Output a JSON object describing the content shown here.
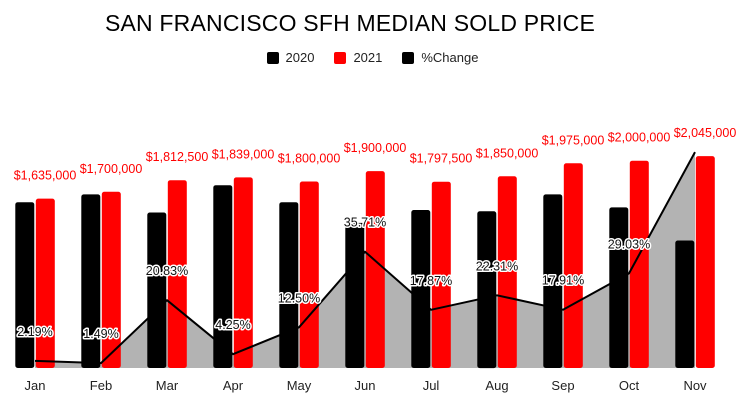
{
  "chart_data": {
    "type": "bar",
    "title": "SAN FRANCISCO SFH MEDIAN SOLD PRICE",
    "categories": [
      "Jan",
      "Feb",
      "Mar",
      "Apr",
      "May",
      "Jun",
      "Jul",
      "Aug",
      "Sep",
      "Oct",
      "Nov"
    ],
    "series": [
      {
        "name": "2020",
        "color": "#000000",
        "values": [
          1600000,
          1675000,
          1500000,
          1764000,
          1600000,
          1400000,
          1525000,
          1512500,
          1675000,
          1550000,
          1230000
        ]
      },
      {
        "name": "2021",
        "color": "#ff0000",
        "values": [
          1635000,
          1700000,
          1812500,
          1839000,
          1800000,
          1900000,
          1797500,
          1850000,
          1975000,
          2000000,
          2045000
        ],
        "data_labels": [
          "$1,635,000",
          "$1,700,000",
          "$1,812,500",
          "$1,839,000",
          "$1,800,000",
          "$1,900,000",
          "$1,797,500",
          "$1,850,000",
          "$1,975,000",
          "$2,000,000",
          "$2,045,000"
        ]
      }
    ],
    "change_series": {
      "name": "%Change",
      "type": "area-line",
      "line_color": "#000000",
      "fill_color": "#b3b3b3",
      "values": [
        2.19,
        1.49,
        20.83,
        4.25,
        12.5,
        35.71,
        17.87,
        22.31,
        17.91,
        29.03,
        66.3
      ],
      "data_labels": [
        "2.19%",
        "1.49%",
        "20.83%",
        "4.25%",
        "12.50%",
        "35.71%",
        "17.87%",
        "22.31%",
        "17.91%",
        "29.03%",
        ""
      ]
    },
    "ylim": [
      0,
      2200000
    ],
    "change_ylim": [
      0,
      70
    ],
    "xlabel": "",
    "ylabel": "",
    "grid": false,
    "legend_position": "top-center"
  }
}
